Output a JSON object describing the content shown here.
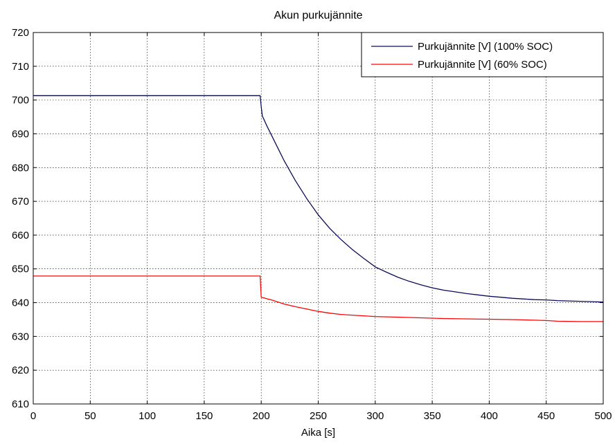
{
  "chart_data": {
    "type": "line",
    "title": "Akun purkujännite",
    "xlabel": "Aika [s]",
    "ylabel": "",
    "xlim": [
      0,
      500
    ],
    "ylim": [
      610,
      720
    ],
    "xticks": [
      0,
      50,
      100,
      150,
      200,
      250,
      300,
      350,
      400,
      450,
      500
    ],
    "yticks": [
      610,
      620,
      630,
      640,
      650,
      660,
      670,
      680,
      690,
      700,
      710,
      720
    ],
    "grid": true,
    "legend_position": "top-right",
    "series": [
      {
        "name": "Purkujännite [V] (100% SOC)",
        "color": "#0a0a5a",
        "x": [
          0,
          199,
          200,
          201,
          205,
          210,
          215,
          220,
          230,
          240,
          250,
          260,
          270,
          280,
          290,
          300,
          310,
          320,
          330,
          340,
          350,
          360,
          370,
          380,
          390,
          400,
          410,
          420,
          430,
          440,
          450,
          460,
          470,
          480,
          490,
          500
        ],
        "y": [
          701.3,
          701.3,
          698.0,
          695.3,
          692.3,
          688.9,
          685.5,
          682.1,
          676.1,
          670.8,
          666.0,
          662.0,
          658.7,
          655.7,
          653.1,
          650.6,
          649.0,
          647.5,
          646.3,
          645.3,
          644.4,
          643.7,
          643.2,
          642.7,
          642.3,
          641.9,
          641.6,
          641.3,
          641.1,
          640.9,
          640.8,
          640.6,
          640.5,
          640.4,
          640.3,
          640.2
        ]
      },
      {
        "name": "Purkujännite [V] (60% SOC)",
        "color": "#ff0000",
        "x": [
          0,
          199,
          200,
          210,
          220,
          230,
          240,
          250,
          260,
          270,
          280,
          290,
          300,
          320,
          340,
          360,
          380,
          400,
          420,
          440,
          450,
          460,
          480,
          500
        ],
        "y": [
          647.9,
          647.9,
          641.6,
          640.7,
          639.6,
          638.8,
          638.1,
          637.4,
          636.9,
          636.5,
          636.3,
          636.1,
          635.9,
          635.7,
          635.5,
          635.3,
          635.2,
          635.1,
          635.0,
          634.8,
          634.7,
          634.5,
          634.4,
          634.4
        ]
      }
    ]
  }
}
